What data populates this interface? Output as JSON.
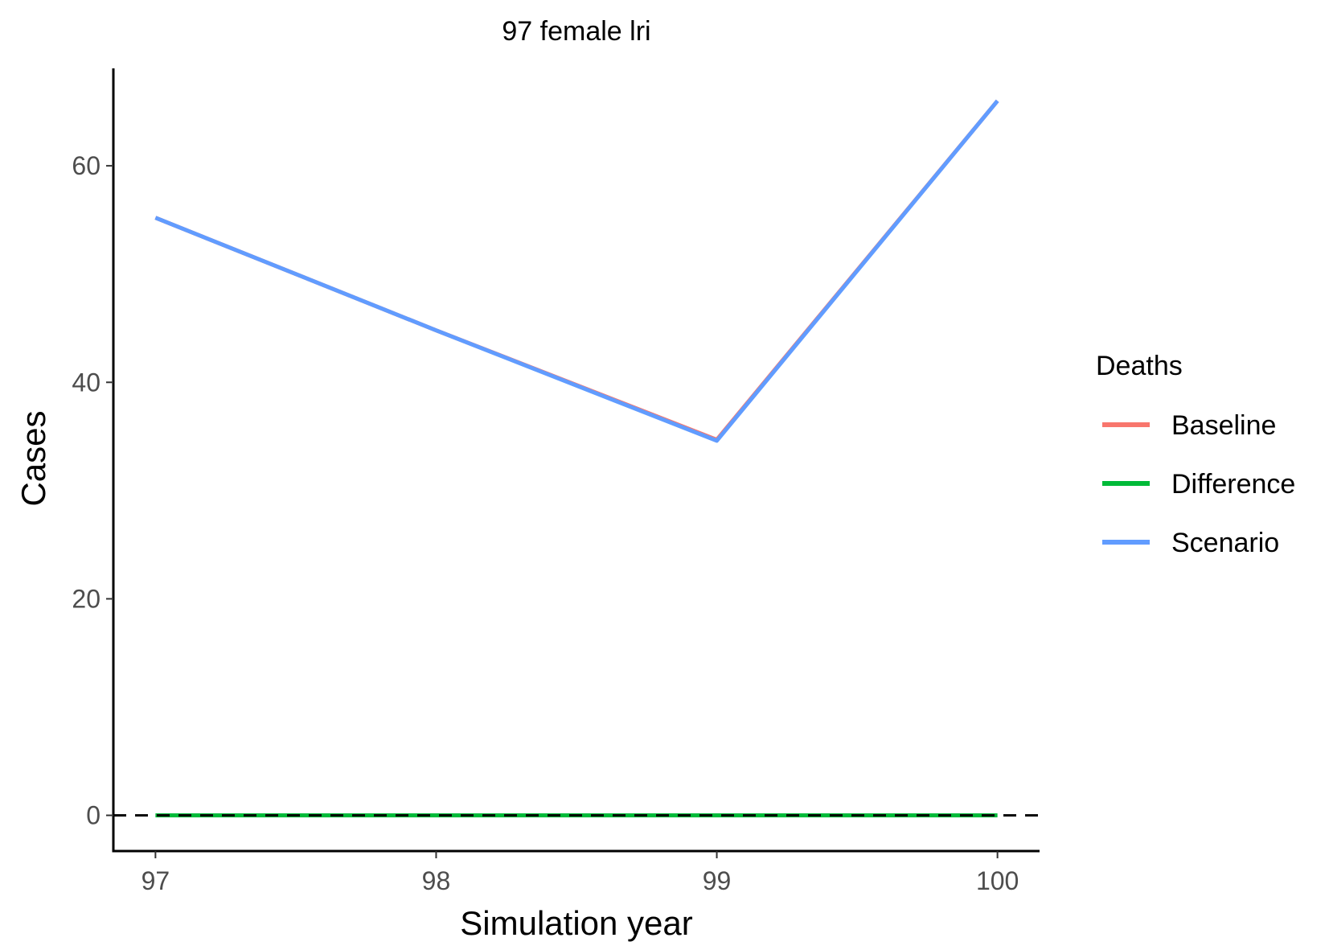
{
  "chart_data": {
    "type": "line",
    "title": "97 female lri",
    "xlabel": "Simulation year",
    "ylabel": "Cases",
    "x": [
      97,
      98,
      99,
      100
    ],
    "xlim": [
      96.85,
      100.15
    ],
    "ylim": [
      -3.3,
      69
    ],
    "x_ticks": [
      "97",
      "98",
      "99",
      "100"
    ],
    "y_ticks": [
      "0",
      "20",
      "40",
      "60"
    ],
    "y_tick_values": [
      0,
      20,
      40,
      60
    ],
    "legend": {
      "title": "Deaths",
      "position": "right"
    },
    "reference_line": {
      "y": 0,
      "style": "dashed",
      "color": "#000000"
    },
    "grid": false,
    "series": [
      {
        "name": "Baseline",
        "color": "#F8766D",
        "values": [
          55.2,
          44.8,
          34.7,
          66
        ]
      },
      {
        "name": "Difference",
        "color": "#00BA38",
        "values": [
          0,
          0,
          0,
          0
        ]
      },
      {
        "name": "Scenario",
        "color": "#619CFF",
        "values": [
          55.2,
          44.8,
          34.6,
          66
        ]
      }
    ]
  }
}
